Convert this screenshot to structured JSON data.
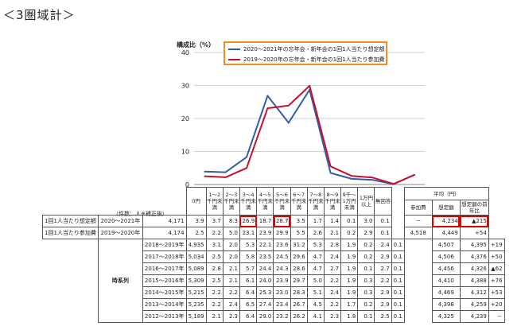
{
  "heading": "＜3圏域計＞",
  "chart_data": {
    "type": "line",
    "ylabel": "構成比（%）",
    "ylim": [
      0,
      40
    ],
    "yticks": [
      0,
      10,
      20,
      30,
      40
    ],
    "categories": [
      "0円",
      "1～2千円未満",
      "2～3千円未満",
      "3～4千円未満",
      "4～5千円未満",
      "5～6千円未満",
      "6～7千円未満",
      "7～8千円未満",
      "8～9千円未満",
      "9千～1万円未満",
      "1万円以上"
    ],
    "series": [
      {
        "name": "2020～2021年の忘年会・新年会の1回1人当たり想定額",
        "color": "#2e5fa8",
        "values": [
          3.9,
          3.7,
          8.3,
          26.9,
          18.7,
          28.7,
          3.5,
          1.7,
          1.4,
          0.1,
          3.0
        ]
      },
      {
        "name": "2019～2020年の忘年会・新年会の1回1人当たり参加費",
        "color": "#c8102e",
        "values": [
          2.5,
          2.2,
          5.0,
          23.1,
          23.9,
          29.9,
          5.5,
          2.6,
          2.1,
          0.2,
          2.9
        ]
      }
    ],
    "legend": "top-right",
    "grid": true
  },
  "table": {
    "caption": "（件数：人※補正後）",
    "headers": [
      "0円",
      "1～2千円未満",
      "2～3千円未満",
      "3～4千円未満",
      "4～5千円未満",
      "5～6千円未満",
      "6～7千円未満",
      "7～8千円未満",
      "8～9千円未満",
      "9千～1万円未満",
      "1万円以上",
      "無回答"
    ],
    "avg_header": "平均（円）",
    "avg_cols": [
      "参加費",
      "想定額",
      "想定額の前年比"
    ],
    "series_label": "時系列",
    "rows": [
      {
        "group": "1回1人当たり想定額",
        "year": "2020～2021年",
        "n": "4,171",
        "vals": [
          "3.9",
          "3.7",
          "8.3",
          "26.9",
          "18.7",
          "28.7",
          "3.5",
          "1.7",
          "1.4",
          "0.1",
          "3.0",
          "0.1"
        ],
        "avg": [
          "－",
          "4,234",
          "▲215"
        ]
      },
      {
        "group": "1回1人当たり参加費",
        "year": "2019～2020年",
        "n": "4,174",
        "vals": [
          "2.5",
          "2.2",
          "5.0",
          "23.1",
          "23.9",
          "29.9",
          "5.5",
          "2.6",
          "2.1",
          "0.2",
          "2.9",
          "0.1"
        ],
        "avg": [
          "4,518",
          "4,449",
          "+54"
        ]
      },
      {
        "year": "2018～2019年",
        "n": "4,935",
        "vals": [
          "3.1",
          "2.0",
          "5.3",
          "22.1",
          "23.6",
          "31.2",
          "5.3",
          "2.8",
          "1.9",
          "0.2",
          "2.4",
          "0.1"
        ],
        "avg": [
          "4,507",
          "4,395",
          "+19"
        ]
      },
      {
        "year": "2017～2018年",
        "n": "5,034",
        "vals": [
          "2.5",
          "2.0",
          "5.8",
          "23.5",
          "24.5",
          "29.6",
          "4.7",
          "2.4",
          "1.9",
          "0.2",
          "2.9",
          "0.1"
        ],
        "avg": [
          "4,506",
          "4,376",
          "+50"
        ]
      },
      {
        "year": "2016～2017年",
        "n": "5,089",
        "vals": [
          "2.8",
          "2.1",
          "5.7",
          "24.4",
          "24.3",
          "28.6",
          "4.7",
          "2.7",
          "1.9",
          "0.1",
          "2.7",
          "0.1"
        ],
        "avg": [
          "4,456",
          "4,326",
          "▲62"
        ]
      },
      {
        "year": "2015～2016年",
        "n": "5,309",
        "vals": [
          "2.5",
          "2.1",
          "6.1",
          "24.0",
          "23.9",
          "29.7",
          "5.0",
          "2.2",
          "1.9",
          "0.3",
          "2.2",
          "0.1"
        ],
        "avg": [
          "4,410",
          "4,388",
          "+76"
        ]
      },
      {
        "year": "2014～2015年",
        "n": "5,215",
        "vals": [
          "2.2",
          "2.2",
          "6.4",
          "25.3",
          "23.0",
          "28.3",
          "5.1",
          "2.4",
          "1.9",
          "0.3",
          "2.9",
          "0.1"
        ],
        "avg": [
          "4,469",
          "4,312",
          "+53"
        ]
      },
      {
        "year": "2013～2014年",
        "n": "5,235",
        "vals": [
          "2.2",
          "2.4",
          "6.5",
          "27.4",
          "23.4",
          "26.7",
          "4.5",
          "2.2",
          "1.7",
          "0.2",
          "2.9",
          "0.1"
        ],
        "avg": [
          "4,398",
          "4,259",
          "+20"
        ]
      },
      {
        "year": "2012～2013年",
        "n": "5,189",
        "vals": [
          "2.1",
          "2.3",
          "6.4",
          "29.0",
          "23.2",
          "26.2",
          "4.1",
          "2.3",
          "1.8",
          "0.1",
          "2.5",
          "0.1"
        ],
        "avg": [
          "4,325",
          "4,239",
          "－"
        ]
      }
    ]
  }
}
